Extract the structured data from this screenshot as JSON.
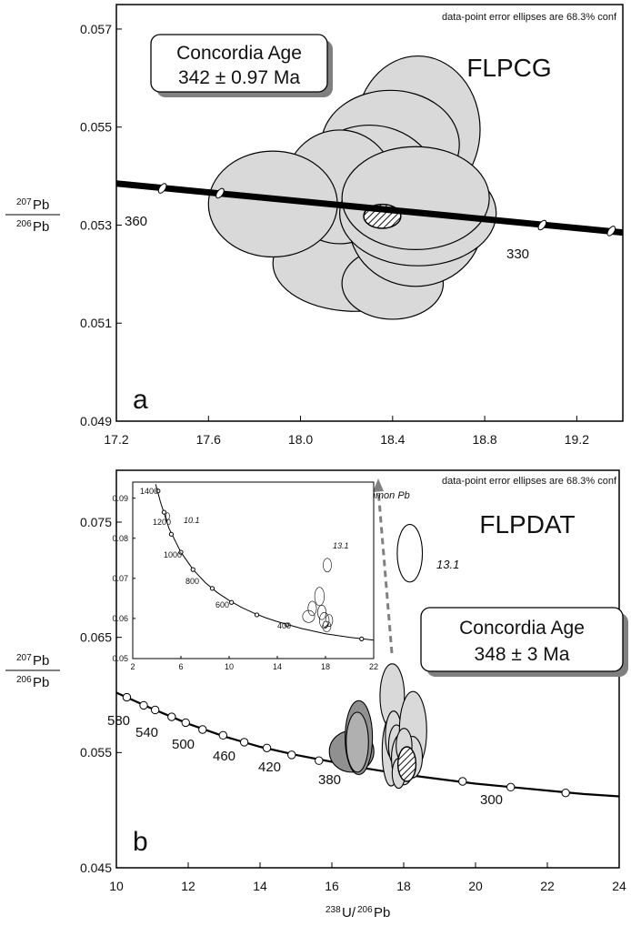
{
  "figure": {
    "ylabel_a": "207",
    "ylabel_b": "Pb",
    "ylabel_c": "206",
    "ylabel_d": "Pb",
    "xlabel_a": "238",
    "xlabel_b": "U/",
    "xlabel_c": "206",
    "xlabel_d": "Pb"
  },
  "chart_data": [
    {
      "type": "scatter",
      "panel_label": "a",
      "title": "FLPCG",
      "note": "data-point error ellipses are 68.3% conf",
      "concordia_box": [
        "Concordia Age",
        "342 ± 0.97 Ma"
      ],
      "xlim": [
        17.2,
        19.4
      ],
      "ylim": [
        0.049,
        0.0575
      ],
      "xticks": [
        "17.2",
        "17.6",
        "18.0",
        "18.4",
        "18.8",
        "19.2"
      ],
      "yticks": [
        "0.049",
        "0.051",
        "0.053",
        "0.055",
        "0.057"
      ],
      "concordia_age_labels": [
        "360",
        "330"
      ],
      "grid": false,
      "concordia_line": [
        [
          17.2,
          0.05385
        ],
        [
          19.4,
          0.05285
        ]
      ],
      "concordia_markers": [
        [
          17.4,
          0.05375
        ],
        [
          17.65,
          0.05365
        ],
        [
          19.05,
          0.053
        ],
        [
          19.35,
          0.05288
        ]
      ],
      "ellipses": [
        {
          "x": 18.51,
          "y": 0.05495,
          "rx": 0.27,
          "ry": 0.0015,
          "fill": "#d9d9d9"
        },
        {
          "x": 18.39,
          "y": 0.05464,
          "rx": 0.3,
          "ry": 0.00111,
          "fill": "#d9d9d9"
        },
        {
          "x": 18.3,
          "y": 0.05366,
          "rx": 0.31,
          "ry": 0.00138,
          "fill": "#d9d9d9"
        },
        {
          "x": 18.36,
          "y": 0.0528,
          "rx": 0.28,
          "ry": 0.00133,
          "fill": "#d9d9d9"
        },
        {
          "x": 18.24,
          "y": 0.05222,
          "rx": 0.36,
          "ry": 0.00098,
          "fill": "#d9d9d9"
        },
        {
          "x": 18.4,
          "y": 0.05181,
          "rx": 0.22,
          "ry": 0.00073,
          "fill": "#d9d9d9"
        },
        {
          "x": 18.17,
          "y": 0.05378,
          "rx": 0.24,
          "ry": 0.00116,
          "fill": "#d9d9d9"
        },
        {
          "x": 18.5,
          "y": 0.05303,
          "rx": 0.29,
          "ry": 0.00128,
          "fill": "#d9d9d9"
        },
        {
          "x": 18.51,
          "y": 0.05324,
          "rx": 0.34,
          "ry": 0.00107,
          "fill": "#d9d9d9"
        },
        {
          "x": 17.88,
          "y": 0.05343,
          "rx": 0.28,
          "ry": 0.00108,
          "fill": "#d9d9d9"
        },
        {
          "x": 18.5,
          "y": 0.05355,
          "rx": 0.32,
          "ry": 0.00105,
          "fill": "#d9d9d9"
        }
      ],
      "concordia_age_ellipse": {
        "x": 18.355,
        "y": 0.05318,
        "rx": 0.0806,
        "ry": 0.000245
      }
    },
    {
      "type": "scatter",
      "panel_label": "b",
      "title": "FLPDAT",
      "note": "data-point error ellipses are 68.3% conf",
      "concordia_box": [
        "Concordia Age",
        "348 ± 3 Ma"
      ],
      "annotation": "To common Pb",
      "point_label": "13.1",
      "xlim": [
        10,
        24
      ],
      "ylim": [
        0.045,
        0.0795
      ],
      "xticks": [
        "10",
        "12",
        "14",
        "16",
        "18",
        "20",
        "22",
        "24"
      ],
      "yticks": [
        "0.045",
        "0.055",
        "0.065",
        "0.075"
      ],
      "concordia_age_labels": [
        "580",
        "540",
        "500",
        "460",
        "420",
        "380",
        "300"
      ],
      "grid": false,
      "concordia_curve": [
        [
          10,
          0.0602
        ],
        [
          11.0,
          0.0588
        ],
        [
          12.0,
          0.0575
        ],
        [
          13.0,
          0.0564
        ],
        [
          14.0,
          0.0555
        ],
        [
          15.0,
          0.0548
        ],
        [
          16.0,
          0.0542
        ],
        [
          17.0,
          0.0536
        ],
        [
          18.0,
          0.0531
        ],
        [
          19.0,
          0.0527
        ],
        [
          20.0,
          0.0523
        ],
        [
          21.0,
          0.052
        ],
        [
          22.0,
          0.0517
        ],
        [
          23.0,
          0.0514
        ],
        [
          24.0,
          0.0512
        ]
      ],
      "concordia_markers": [
        [
          10.29,
          0.0598
        ],
        [
          10.76,
          0.0591
        ],
        [
          11.08,
          0.0587
        ],
        [
          11.54,
          0.0581
        ],
        [
          11.93,
          0.0576
        ],
        [
          12.4,
          0.057
        ],
        [
          12.97,
          0.0565
        ],
        [
          13.56,
          0.0559
        ],
        [
          14.19,
          0.0554
        ],
        [
          14.88,
          0.0548
        ],
        [
          15.64,
          0.0543
        ],
        [
          19.64,
          0.0525
        ],
        [
          20.98,
          0.052
        ],
        [
          22.51,
          0.0515
        ]
      ],
      "ellipses": [
        {
          "x": 16.55,
          "y": 0.0551,
          "rx": 0.62,
          "ry": 0.0018,
          "fill": "#909090"
        },
        {
          "x": 16.75,
          "y": 0.0563,
          "rx": 0.38,
          "ry": 0.0032,
          "fill": "#909090"
        },
        {
          "x": 16.71,
          "y": 0.0559,
          "rx": 0.31,
          "ry": 0.0026,
          "fill": "#b0b0b0"
        },
        {
          "x": 17.68,
          "y": 0.0599,
          "rx": 0.34,
          "ry": 0.0028,
          "fill": "#d9d9d9"
        },
        {
          "x": 17.65,
          "y": 0.0551,
          "rx": 0.25,
          "ry": 0.003,
          "fill": "#d9d9d9"
        },
        {
          "x": 17.72,
          "y": 0.0565,
          "rx": 0.23,
          "ry": 0.0021,
          "fill": "#d9d9d9"
        },
        {
          "x": 17.8,
          "y": 0.0556,
          "rx": 0.22,
          "ry": 0.0018,
          "fill": "#d9d9d9"
        },
        {
          "x": 17.93,
          "y": 0.0545,
          "rx": 0.27,
          "ry": 0.0021,
          "fill": "#d9d9d9"
        },
        {
          "x": 18.0,
          "y": 0.0535,
          "rx": 0.25,
          "ry": 0.0013,
          "fill": "#d9d9d9"
        },
        {
          "x": 18.26,
          "y": 0.0569,
          "rx": 0.38,
          "ry": 0.0034,
          "fill": "#d9d9d9"
        },
        {
          "x": 18.24,
          "y": 0.0546,
          "rx": 0.28,
          "ry": 0.0018,
          "fill": "#d9d9d9"
        },
        {
          "x": 18.01,
          "y": 0.0556,
          "rx": 0.22,
          "ry": 0.0015,
          "fill": "#d9d9d9"
        },
        {
          "x": 17.86,
          "y": 0.0532,
          "rx": 0.18,
          "ry": 0.0013,
          "fill": "#d9d9d9"
        },
        {
          "x": 18.17,
          "y": 0.0723,
          "rx": 0.35,
          "ry": 0.0025,
          "fill": "#ffffff"
        }
      ],
      "concordia_age_ellipse": {
        "x": 18.09,
        "y": 0.054,
        "rx": 0.25,
        "ry": 0.0015
      }
    },
    {
      "type": "scatter",
      "panel_label": "inset",
      "xlim": [
        2,
        22
      ],
      "ylim": [
        0.05,
        0.094
      ],
      "xticks": [
        "2",
        "6",
        "10",
        "14",
        "18",
        "22"
      ],
      "yticks": [
        "0.05",
        "0.06",
        "0.07",
        "0.08",
        "0.09"
      ],
      "concordia_age_labels": [
        "1400",
        "1200",
        "1000",
        "800",
        "600",
        "400"
      ],
      "point_labels": [
        "10.1",
        "13.1"
      ],
      "concordia_curve": [
        [
          3.9,
          0.0935
        ],
        [
          4.3,
          0.089
        ],
        [
          5.0,
          0.0825
        ],
        [
          6.0,
          0.0765
        ],
        [
          7.0,
          0.0722
        ],
        [
          8.0,
          0.069
        ],
        [
          9.0,
          0.0665
        ],
        [
          10.0,
          0.0645
        ],
        [
          11.0,
          0.0628
        ],
        [
          12.0,
          0.0614
        ],
        [
          13.0,
          0.0602
        ],
        [
          14.0,
          0.0592
        ],
        [
          16.0,
          0.0575
        ],
        [
          18.0,
          0.0562
        ],
        [
          20.0,
          0.0553
        ],
        [
          22.0,
          0.0546
        ]
      ],
      "concordia_markers": [
        [
          4.1,
          0.0918
        ],
        [
          4.6,
          0.0865
        ],
        [
          5.2,
          0.081
        ],
        [
          6.0,
          0.0765
        ],
        [
          7.0,
          0.0722
        ],
        [
          8.6,
          0.0675
        ],
        [
          10.2,
          0.064
        ],
        [
          12.3,
          0.0609
        ],
        [
          14.8,
          0.0584
        ],
        [
          21.0,
          0.0549
        ]
      ],
      "ellipses": [
        {
          "x": 16.6,
          "y": 0.0605,
          "rx": 0.5,
          "ry": 0.0015
        },
        {
          "x": 16.9,
          "y": 0.0625,
          "rx": 0.35,
          "ry": 0.0018
        },
        {
          "x": 17.5,
          "y": 0.0655,
          "rx": 0.4,
          "ry": 0.0023
        },
        {
          "x": 17.7,
          "y": 0.0615,
          "rx": 0.35,
          "ry": 0.0018
        },
        {
          "x": 17.9,
          "y": 0.0595,
          "rx": 0.4,
          "ry": 0.002
        },
        {
          "x": 18.1,
          "y": 0.058,
          "rx": 0.35,
          "ry": 0.0013
        },
        {
          "x": 18.3,
          "y": 0.0595,
          "rx": 0.3,
          "ry": 0.0015
        },
        {
          "x": 18.15,
          "y": 0.0733,
          "rx": 0.35,
          "ry": 0.0017
        },
        {
          "x": 4.9,
          "y": 0.0855,
          "rx": 0.15,
          "ry": 0.0009
        }
      ],
      "concordia_age_ellipse": {
        "x": 18.0,
        "y": 0.0585,
        "rx": 0.2,
        "ry": 0.0008
      }
    }
  ]
}
